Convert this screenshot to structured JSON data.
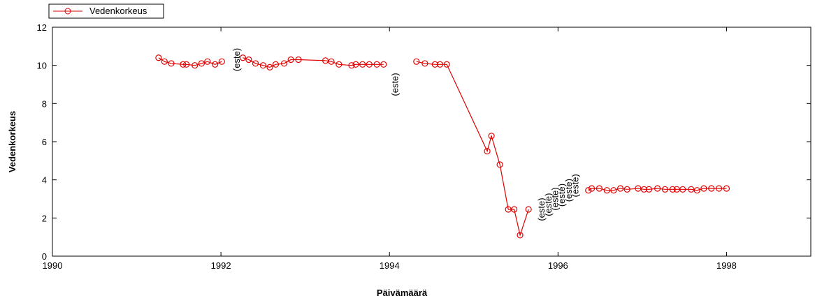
{
  "chart_data": {
    "type": "line",
    "x_label": "Päivämäärä",
    "y_label": "Vedenkorkeus",
    "xlim": [
      1990,
      1999
    ],
    "xticks": [
      1990,
      1992,
      1994,
      1996,
      1998
    ],
    "ylim": [
      0,
      12
    ],
    "yticks": [
      0,
      2,
      4,
      6,
      8,
      10,
      12
    ],
    "legend": "top-left",
    "x": [
      1991.26,
      1991.33,
      1991.41,
      1991.55,
      1991.59,
      1991.69,
      1991.77,
      1991.84,
      1991.93,
      1992.01,
      null,
      1992.26,
      1992.33,
      1992.41,
      1992.5,
      1992.58,
      1992.65,
      1992.75,
      1992.83,
      1992.92,
      1993.24,
      1993.31,
      1993.4,
      1993.55,
      1993.6,
      1993.68,
      1993.76,
      1993.85,
      1993.93,
      null,
      1994.32,
      1994.42,
      1994.54,
      1994.6,
      1994.68,
      1995.16,
      1995.21,
      1995.31,
      1995.41,
      1995.48,
      1995.55,
      1995.65,
      null,
      1996.36,
      1996.4,
      1996.49,
      1996.58,
      1996.66,
      1996.74,
      1996.82,
      1996.95,
      1997.02,
      1997.08,
      1997.18,
      1997.27,
      1997.36,
      1997.41,
      1997.48,
      1997.58,
      1997.65,
      1997.73,
      1997.82,
      1997.91,
      1998.0
    ],
    "series": [
      {
        "name": "Vedenkorkeus",
        "color": "#e00000",
        "values": [
          10.4,
          10.2,
          10.1,
          10.05,
          10.05,
          10.0,
          10.1,
          10.2,
          10.05,
          10.2,
          null,
          10.4,
          10.3,
          10.1,
          10.0,
          9.9,
          10.05,
          10.1,
          10.3,
          10.3,
          10.25,
          10.2,
          10.05,
          10.0,
          10.05,
          10.05,
          10.05,
          10.05,
          10.05,
          null,
          10.2,
          10.1,
          10.05,
          10.05,
          10.05,
          5.5,
          6.3,
          4.8,
          2.45,
          2.45,
          1.1,
          2.45,
          null,
          3.45,
          3.55,
          3.55,
          3.45,
          3.45,
          3.55,
          3.5,
          3.55,
          3.5,
          3.5,
          3.55,
          3.5,
          3.5,
          3.5,
          3.5,
          3.5,
          3.45,
          3.55,
          3.55,
          3.55,
          3.55
        ]
      }
    ],
    "annotations": [
      {
        "text": "(este)",
        "x": 1992.18,
        "y": 10.3
      },
      {
        "text": "(este)",
        "x": 1994.06,
        "y": 9.0
      },
      {
        "text": "(este)",
        "x": 1995.8,
        "y": 2.45
      },
      {
        "text": "(este)",
        "x": 1995.88,
        "y": 2.7
      },
      {
        "text": "(este)",
        "x": 1995.96,
        "y": 3.0
      },
      {
        "text": "(este)",
        "x": 1996.04,
        "y": 3.2
      },
      {
        "text": "(este)",
        "x": 1996.12,
        "y": 3.45
      },
      {
        "text": "(este)",
        "x": 1996.2,
        "y": 3.7
      }
    ]
  }
}
